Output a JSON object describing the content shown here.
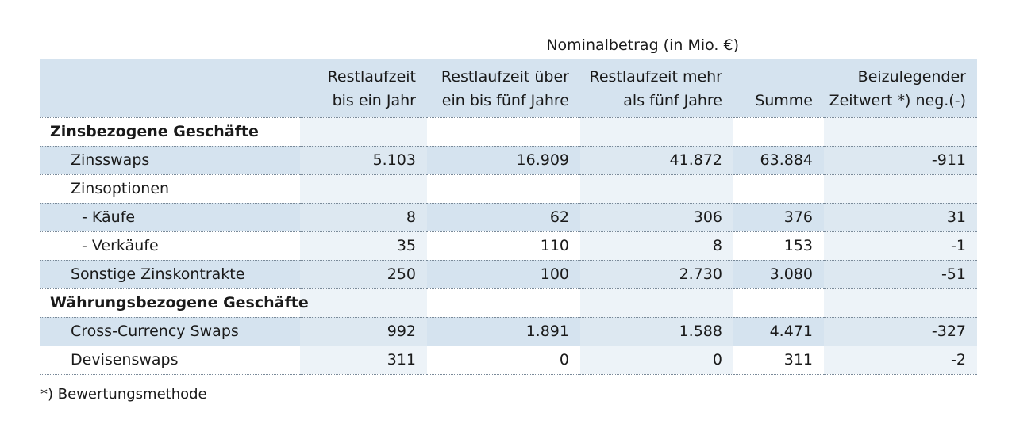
{
  "table": {
    "super_header": "Nominalbetrag (in Mio. €)",
    "columns": [
      [
        "",
        ""
      ],
      [
        "Restlaufzeit",
        "bis ein Jahr"
      ],
      [
        "Restlaufzeit über",
        "ein bis fünf Jahre"
      ],
      [
        "Restlaufzeit mehr",
        "als fünf Jahre"
      ],
      [
        "",
        "Summe"
      ],
      [
        "Beizulegender",
        "Zeitwert *) neg.(-)"
      ]
    ],
    "rows": [
      {
        "label": "Zinsbezogene Geschäfte",
        "values": [
          "",
          "",
          "",
          "",
          ""
        ],
        "kind": "section"
      },
      {
        "label": "Zinsswaps",
        "values": [
          "5.103",
          "16.909",
          "41.872",
          "63.884",
          "-911"
        ],
        "kind": "item"
      },
      {
        "label": "Zinsoptionen",
        "values": [
          "",
          "",
          "",
          "",
          ""
        ],
        "kind": "item"
      },
      {
        "label": "- Käufe",
        "values": [
          "8",
          "62",
          "306",
          "376",
          "31"
        ],
        "kind": "sub"
      },
      {
        "label": "- Verkäufe",
        "values": [
          "35",
          "110",
          "8",
          "153",
          "-1"
        ],
        "kind": "sub"
      },
      {
        "label": "Sonstige Zinskontrakte",
        "values": [
          "250",
          "100",
          "2.730",
          "3.080",
          "-51"
        ],
        "kind": "item"
      },
      {
        "label": "Währungsbezogene Geschäfte",
        "values": [
          "",
          "",
          "",
          "",
          ""
        ],
        "kind": "section"
      },
      {
        "label": "Cross-Currency Swaps",
        "values": [
          "992",
          "1.891",
          "1.588",
          "4.471",
          "-327"
        ],
        "kind": "item"
      },
      {
        "label": "Devisenswaps",
        "values": [
          "311",
          "0",
          "0",
          "311",
          "-2"
        ],
        "kind": "item"
      }
    ]
  },
  "footnote": "*) Bewertungsmethode",
  "colors": {
    "header_bg": "#d5e3ef",
    "column_tint": "#edf3f8",
    "rule": "#7a8a99"
  }
}
